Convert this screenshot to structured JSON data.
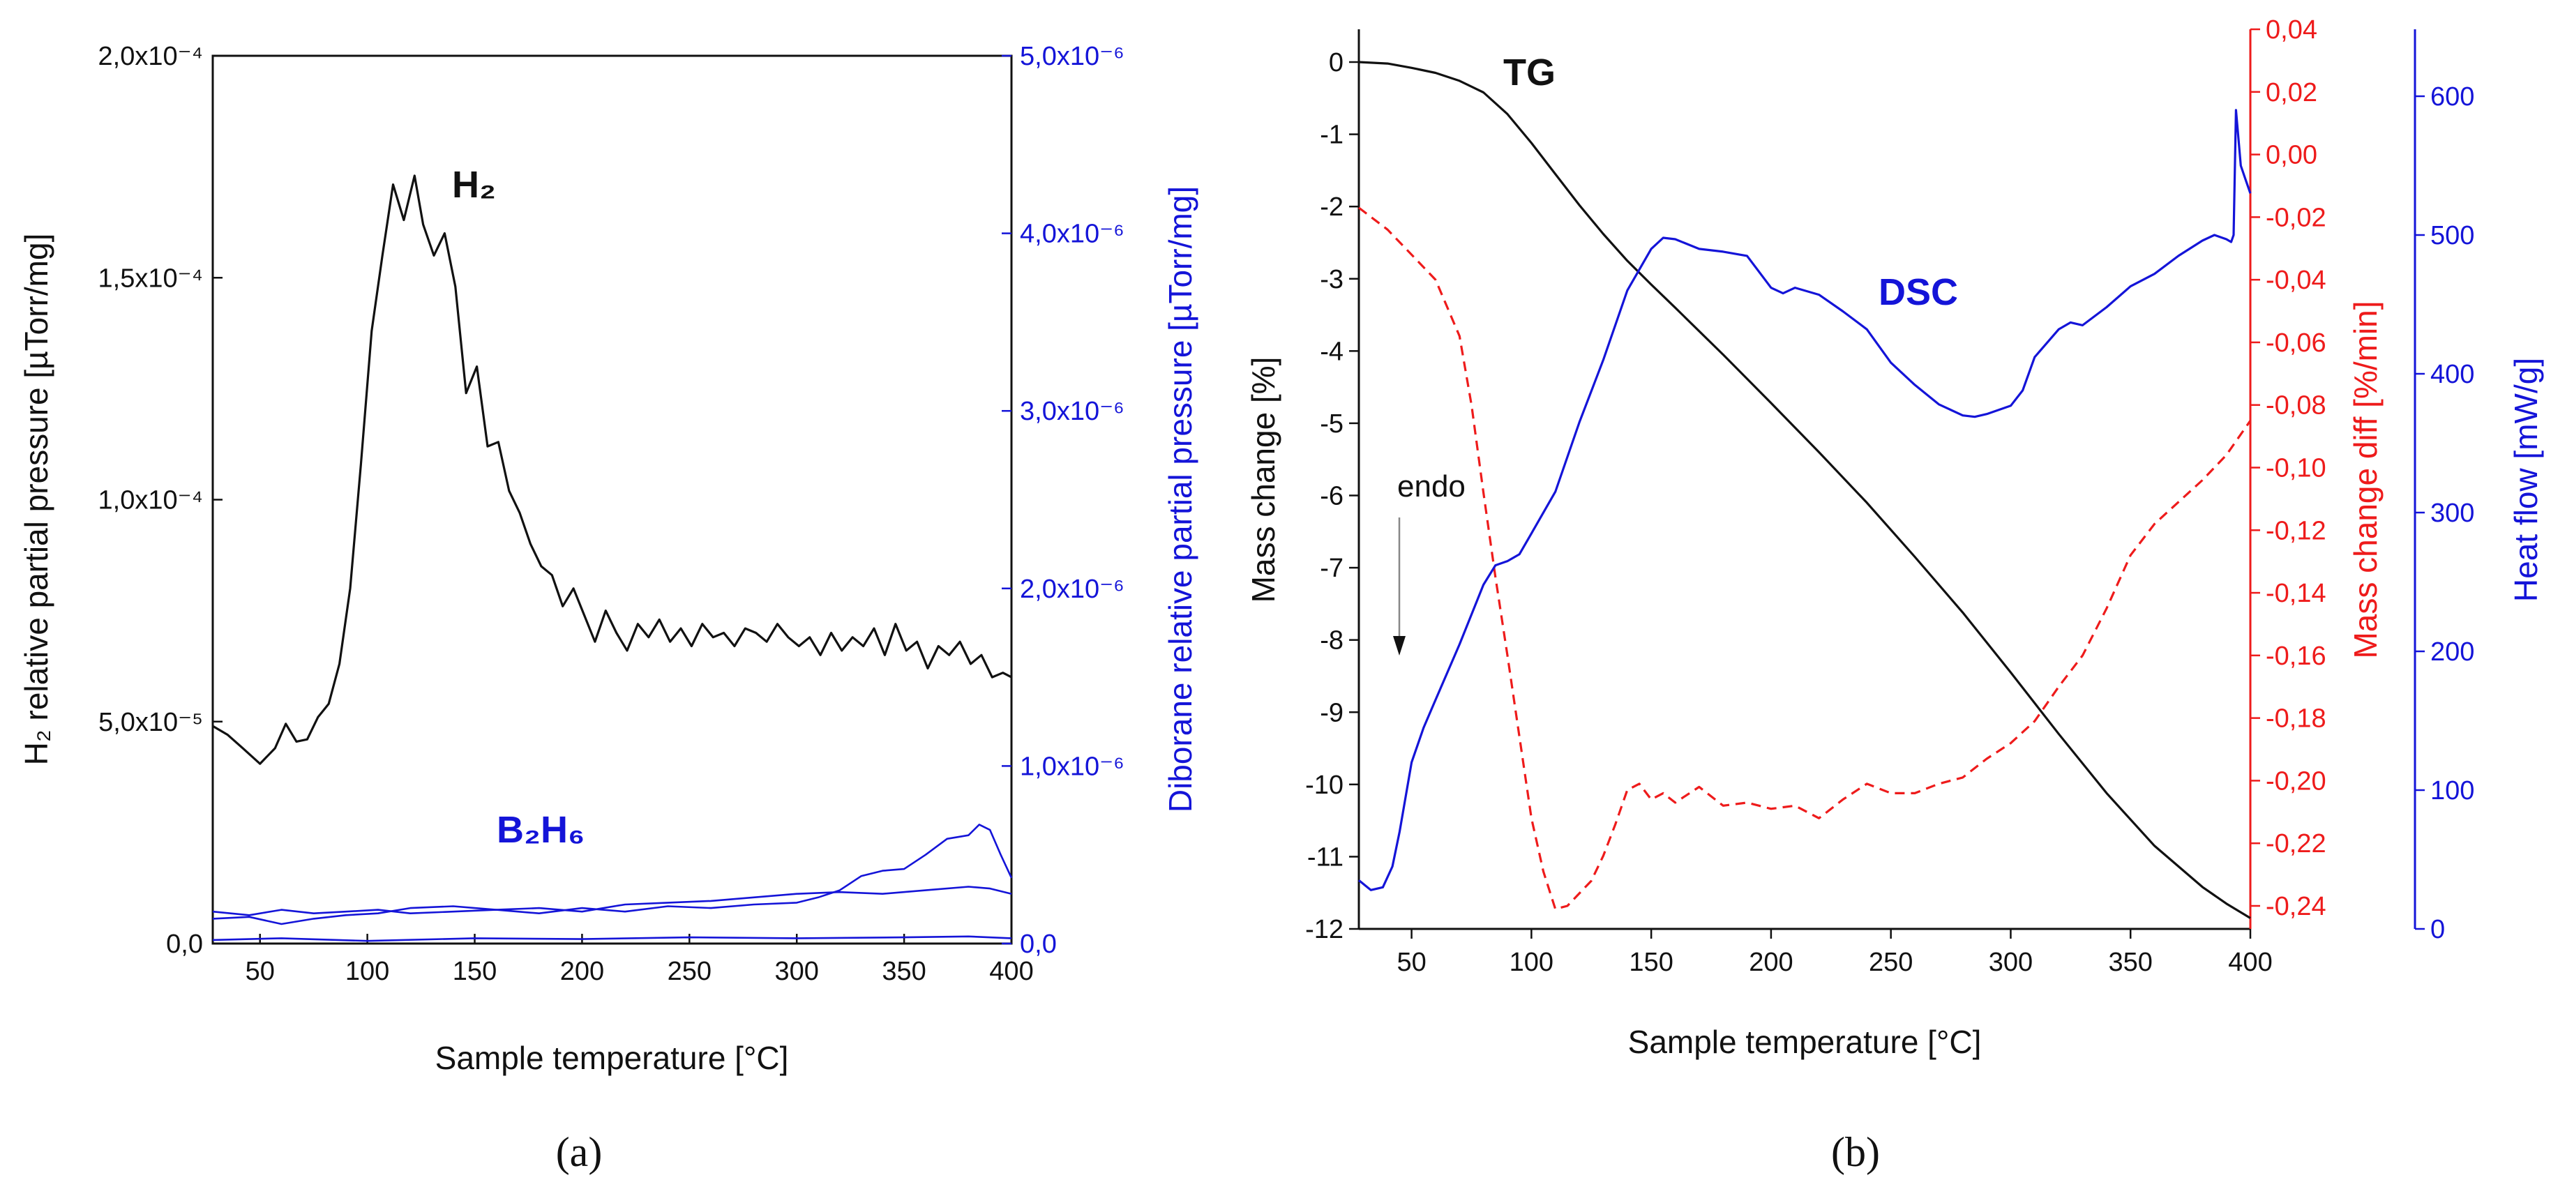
{
  "captions": {
    "a": "(a)",
    "b": "(b)"
  },
  "colors": {
    "black": "#111111",
    "blue": "#1414d8",
    "red": "#ee1b1b"
  },
  "chart_data": [
    {
      "type": "line",
      "panel": "a",
      "xlabel": "Sample temperature [°C]",
      "ylabel_left": "H₂ relative partial pressure [µTorr/mg]",
      "ylabel_right": "Diborane relative partial pressure [µTorr/mg]",
      "xlim": [
        28,
        400
      ],
      "ylim_left": [
        0,
        0.0002
      ],
      "ylim_right": [
        0,
        5e-06
      ],
      "x_ticks": [
        "50",
        "100",
        "150",
        "200",
        "250",
        "300",
        "350",
        "400"
      ],
      "y_ticks_left": [
        "0,0",
        "5,0x10⁻⁵",
        "1,0x10⁻⁴",
        "1,5x10⁻⁴",
        "2,0x10⁻⁴"
      ],
      "y_ticks_right": [
        "0,0",
        "1,0x10⁻⁶",
        "2,0x10⁻⁶",
        "3,0x10⁻⁶",
        "4,0x10⁻⁶",
        "5,0x10⁻⁶"
      ],
      "annotations": {
        "h2": "H₂",
        "b2h6": "B₂H₆"
      },
      "series": [
        {
          "name": "H2",
          "axis": "left",
          "color": "#111111",
          "x": [
            28,
            35,
            42,
            50,
            57,
            62,
            67,
            72,
            77,
            82,
            87,
            92,
            97,
            102,
            107,
            112,
            117,
            122,
            126,
            131,
            136,
            141,
            146,
            151,
            156,
            161,
            166,
            171,
            176,
            181,
            186,
            191,
            196,
            201,
            206,
            211,
            216,
            221,
            226,
            231,
            236,
            241,
            246,
            251,
            256,
            261,
            266,
            271,
            276,
            281,
            286,
            291,
            296,
            301,
            306,
            311,
            316,
            321,
            326,
            331,
            336,
            341,
            346,
            351,
            356,
            361,
            366,
            371,
            376,
            381,
            386,
            391,
            396,
            400
          ],
          "y": [
            4.9e-05,
            4.7e-05,
            4.4e-05,
            4.05e-05,
            4.4e-05,
            4.95e-05,
            4.55e-05,
            4.6e-05,
            5.1e-05,
            5.4e-05,
            6.3e-05,
            8e-05,
            0.000108,
            0.000138,
            0.000155,
            0.000171,
            0.000163,
            0.000173,
            0.000162,
            0.000155,
            0.00016,
            0.000148,
            0.000124,
            0.00013,
            0.000112,
            0.000113,
            0.000102,
            9.7e-05,
            9e-05,
            8.5e-05,
            8.3e-05,
            7.6e-05,
            8e-05,
            7.4e-05,
            6.8e-05,
            7.5e-05,
            7e-05,
            6.6e-05,
            7.2e-05,
            6.9e-05,
            7.3e-05,
            6.8e-05,
            7.1e-05,
            6.7e-05,
            7.2e-05,
            6.9e-05,
            7e-05,
            6.7e-05,
            7.1e-05,
            7e-05,
            6.8e-05,
            7.2e-05,
            6.9e-05,
            6.7e-05,
            6.9e-05,
            6.5e-05,
            7e-05,
            6.6e-05,
            6.9e-05,
            6.7e-05,
            7.1e-05,
            6.5e-05,
            7.2e-05,
            6.6e-05,
            6.8e-05,
            6.2e-05,
            6.7e-05,
            6.5e-05,
            6.8e-05,
            6.3e-05,
            6.5e-05,
            6e-05,
            6.1e-05,
            6e-05
          ]
        },
        {
          "name": "B2H6 (1)",
          "axis": "right",
          "color": "#1414d8",
          "x": [
            28,
            45,
            60,
            75,
            90,
            105,
            120,
            140,
            160,
            180,
            200,
            220,
            240,
            260,
            280,
            300,
            310,
            320,
            330,
            340,
            350,
            360,
            370,
            380,
            385,
            390,
            395,
            400
          ],
          "y": [
            1.8e-07,
            1.6e-07,
            1.9e-07,
            1.7e-07,
            1.8e-07,
            1.9e-07,
            1.7e-07,
            1.8e-07,
            1.9e-07,
            1.7e-07,
            2e-07,
            1.8e-07,
            2.1e-07,
            2e-07,
            2.2e-07,
            2.3e-07,
            2.6e-07,
            3e-07,
            3.8e-07,
            4.1e-07,
            4.2e-07,
            5e-07,
            5.9e-07,
            6.1e-07,
            6.7e-07,
            6.4e-07,
            5e-07,
            3.7e-07
          ]
        },
        {
          "name": "B2H6 (2)",
          "axis": "right",
          "color": "#1414d8",
          "x": [
            28,
            45,
            60,
            75,
            90,
            105,
            120,
            140,
            160,
            180,
            200,
            220,
            240,
            260,
            280,
            300,
            320,
            340,
            360,
            380,
            390,
            400
          ],
          "y": [
            1.4e-07,
            1.5e-07,
            1.1e-07,
            1.4e-07,
            1.6e-07,
            1.7e-07,
            2e-07,
            2.1e-07,
            1.9e-07,
            2e-07,
            1.8e-07,
            2.2e-07,
            2.3e-07,
            2.4e-07,
            2.6e-07,
            2.8e-07,
            2.9e-07,
            2.8e-07,
            3e-07,
            3.2e-07,
            3.1e-07,
            2.8e-07
          ]
        },
        {
          "name": "B2H6 (3)",
          "axis": "right",
          "color": "#1414d8",
          "x": [
            28,
            60,
            100,
            150,
            200,
            250,
            300,
            350,
            380,
            400
          ],
          "y": [
            2e-08,
            3e-08,
            1.5e-08,
            3e-08,
            2.5e-08,
            3.5e-08,
            3e-08,
            3.5e-08,
            4e-08,
            3e-08
          ]
        }
      ]
    },
    {
      "type": "line",
      "panel": "b",
      "xlabel": "Sample temperature [°C]",
      "ylabel_left": "Mass change [%]",
      "ylabel_right1": "Mass change diff [%/min]",
      "ylabel_right2": "Heat flow [mW/g]",
      "xlim": [
        28,
        400
      ],
      "ylim_left": [
        -12,
        0.55
      ],
      "ylim_right1": [
        -0.254,
        0.04
      ],
      "ylim_right2": [
        0,
        650
      ],
      "x_ticks": [
        "50",
        "100",
        "150",
        "200",
        "250",
        "300",
        "350",
        "400"
      ],
      "y_ticks_left": [
        "0",
        "-1",
        "-2",
        "-3",
        "-4",
        "-5",
        "-6",
        "-7",
        "-8",
        "-9",
        "-10",
        "-11",
        "-12"
      ],
      "y_ticks_right1": [
        "0,04",
        "0,02",
        "0,00",
        "-0,02",
        "-0,04",
        "-0,06",
        "-0,08",
        "-0,10",
        "-0,12",
        "-0,14",
        "-0,16",
        "-0,18",
        "-0,20",
        "-0,22",
        "-0,24"
      ],
      "y_ticks_right2": [
        "0",
        "100",
        "200",
        "300",
        "400",
        "500",
        "600"
      ],
      "annotations": {
        "tg": "TG",
        "dsc": "DSC",
        "endo": "endo"
      },
      "series": [
        {
          "name": "TG",
          "axis": "left",
          "color": "#111111",
          "x": [
            28,
            40,
            50,
            60,
            70,
            80,
            90,
            100,
            110,
            120,
            130,
            140,
            150,
            160,
            180,
            200,
            220,
            240,
            260,
            280,
            300,
            320,
            340,
            360,
            380,
            390,
            400
          ],
          "y": [
            0.0,
            -0.02,
            -0.08,
            -0.15,
            -0.26,
            -0.42,
            -0.72,
            -1.12,
            -1.55,
            -1.98,
            -2.38,
            -2.75,
            -3.08,
            -3.4,
            -4.05,
            -4.72,
            -5.4,
            -6.1,
            -6.85,
            -7.62,
            -8.45,
            -9.3,
            -10.12,
            -10.85,
            -11.42,
            -11.65,
            -11.85
          ]
        },
        {
          "name": "Mass change diff",
          "axis": "right1",
          "color": "#ee1b1b",
          "x": [
            28,
            40,
            50,
            60,
            70,
            75,
            80,
            85,
            90,
            95,
            100,
            105,
            110,
            115,
            120,
            125,
            130,
            135,
            140,
            145,
            150,
            155,
            160,
            170,
            180,
            190,
            200,
            210,
            220,
            230,
            240,
            250,
            260,
            270,
            280,
            290,
            300,
            310,
            320,
            330,
            340,
            350,
            360,
            370,
            380,
            390,
            400
          ],
          "y": [
            -0.017,
            -0.024,
            -0.032,
            -0.04,
            -0.058,
            -0.08,
            -0.108,
            -0.135,
            -0.16,
            -0.186,
            -0.212,
            -0.229,
            -0.241,
            -0.24,
            -0.236,
            -0.232,
            -0.224,
            -0.214,
            -0.203,
            -0.201,
            -0.206,
            -0.204,
            -0.207,
            -0.202,
            -0.208,
            -0.207,
            -0.209,
            -0.208,
            -0.212,
            -0.206,
            -0.201,
            -0.204,
            -0.204,
            -0.201,
            -0.199,
            -0.193,
            -0.188,
            -0.181,
            -0.17,
            -0.16,
            -0.145,
            -0.128,
            -0.118,
            -0.111,
            -0.104,
            -0.096,
            -0.085
          ]
        },
        {
          "name": "DSC",
          "axis": "right2",
          "color": "#1414d8",
          "x": [
            28,
            33,
            38,
            42,
            45,
            50,
            55,
            60,
            70,
            80,
            85,
            90,
            95,
            100,
            110,
            120,
            130,
            140,
            150,
            155,
            160,
            170,
            180,
            190,
            200,
            205,
            210,
            220,
            230,
            240,
            250,
            260,
            270,
            280,
            285,
            290,
            300,
            305,
            310,
            315,
            320,
            325,
            330,
            340,
            350,
            360,
            370,
            380,
            385,
            390,
            392,
            393,
            394,
            396,
            398,
            400
          ],
          "y": [
            35,
            28,
            30,
            45,
            70,
            120,
            145,
            165,
            205,
            248,
            262,
            265,
            270,
            285,
            315,
            365,
            410,
            460,
            490,
            498,
            497,
            490,
            488,
            485,
            462,
            458,
            462,
            457,
            445,
            432,
            408,
            392,
            378,
            370,
            369,
            371,
            377,
            388,
            412,
            422,
            432,
            437,
            435,
            448,
            463,
            472,
            485,
            496,
            500,
            497,
            495,
            500,
            590,
            550,
            540,
            530
          ]
        }
      ]
    }
  ]
}
